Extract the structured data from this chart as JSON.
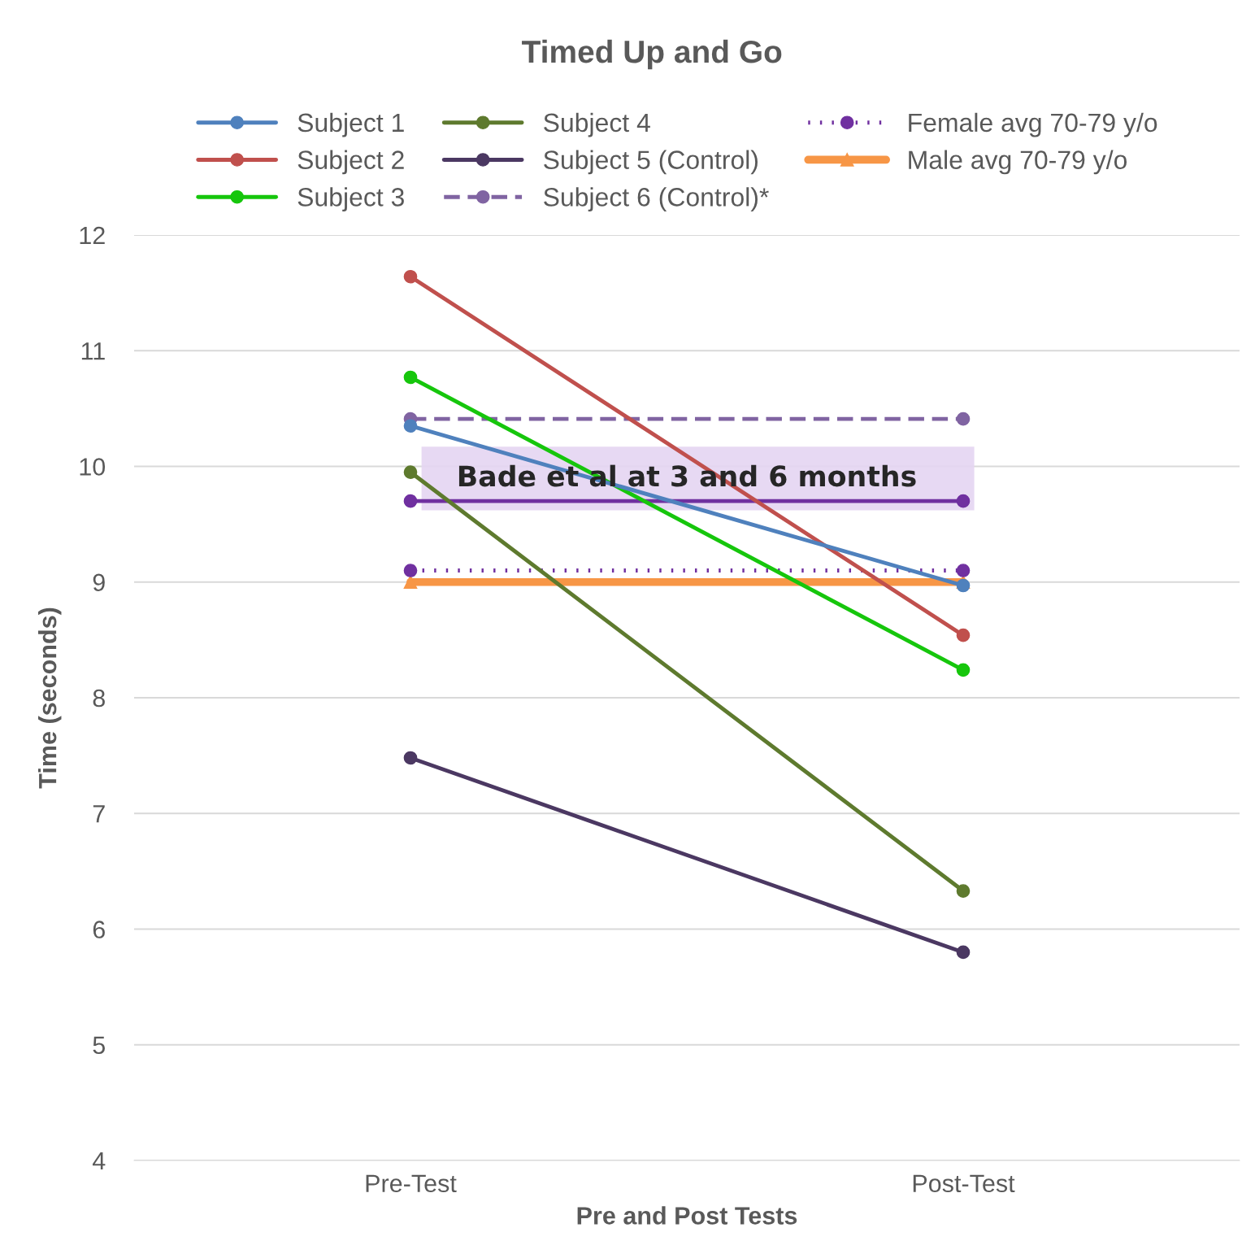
{
  "chart_data": {
    "type": "line",
    "title": "Timed Up and Go",
    "xlabel": "Pre and Post Tests",
    "ylabel": "Time (seconds)",
    "categories": [
      "Pre-Test",
      "Post-Test"
    ],
    "series": [
      {
        "name": "Subject 1",
        "color": "#4f81bd",
        "values": [
          10.35,
          8.97
        ]
      },
      {
        "name": "Subject 2",
        "color": "#c0504d",
        "values": [
          11.64,
          8.54
        ]
      },
      {
        "name": "Subject 3",
        "color": "#16c60c",
        "values": [
          10.77,
          8.24
        ]
      },
      {
        "name": "Subject 4",
        "color": "#5e7a2e",
        "values": [
          9.95,
          6.33
        ]
      },
      {
        "name": "Subject 5 (Control)",
        "color": "#4b3862",
        "values": [
          7.48,
          5.8
        ]
      },
      {
        "name": "Subject 6 (Control)*",
        "color": "#8064a2",
        "values": [
          10.41,
          10.41
        ],
        "line_style": "dashed"
      },
      {
        "name": "Female avg 70-79 y/o",
        "color": "#7030a0",
        "values": [
          9.1,
          9.1
        ],
        "line_style": "dotted"
      },
      {
        "name": "Male avg 70-79 y/o",
        "color": "#f79646",
        "values": [
          9.0,
          9.0
        ],
        "marker": "triangle"
      },
      {
        "color": "#7030a0",
        "values": [
          9.7,
          9.7
        ]
      }
    ],
    "bands": [
      {
        "axis": "y",
        "from": 9.62,
        "to": 10.17,
        "label": "Bade et al at 3 and 6 months",
        "color": "#e4d5f2"
      }
    ],
    "ylim": [
      4,
      12
    ],
    "yticks": [
      4,
      5,
      6,
      7,
      8,
      9,
      10,
      11,
      12
    ],
    "grid": "y",
    "legend": "top",
    "marker": "circle",
    "line_style": "solid"
  }
}
